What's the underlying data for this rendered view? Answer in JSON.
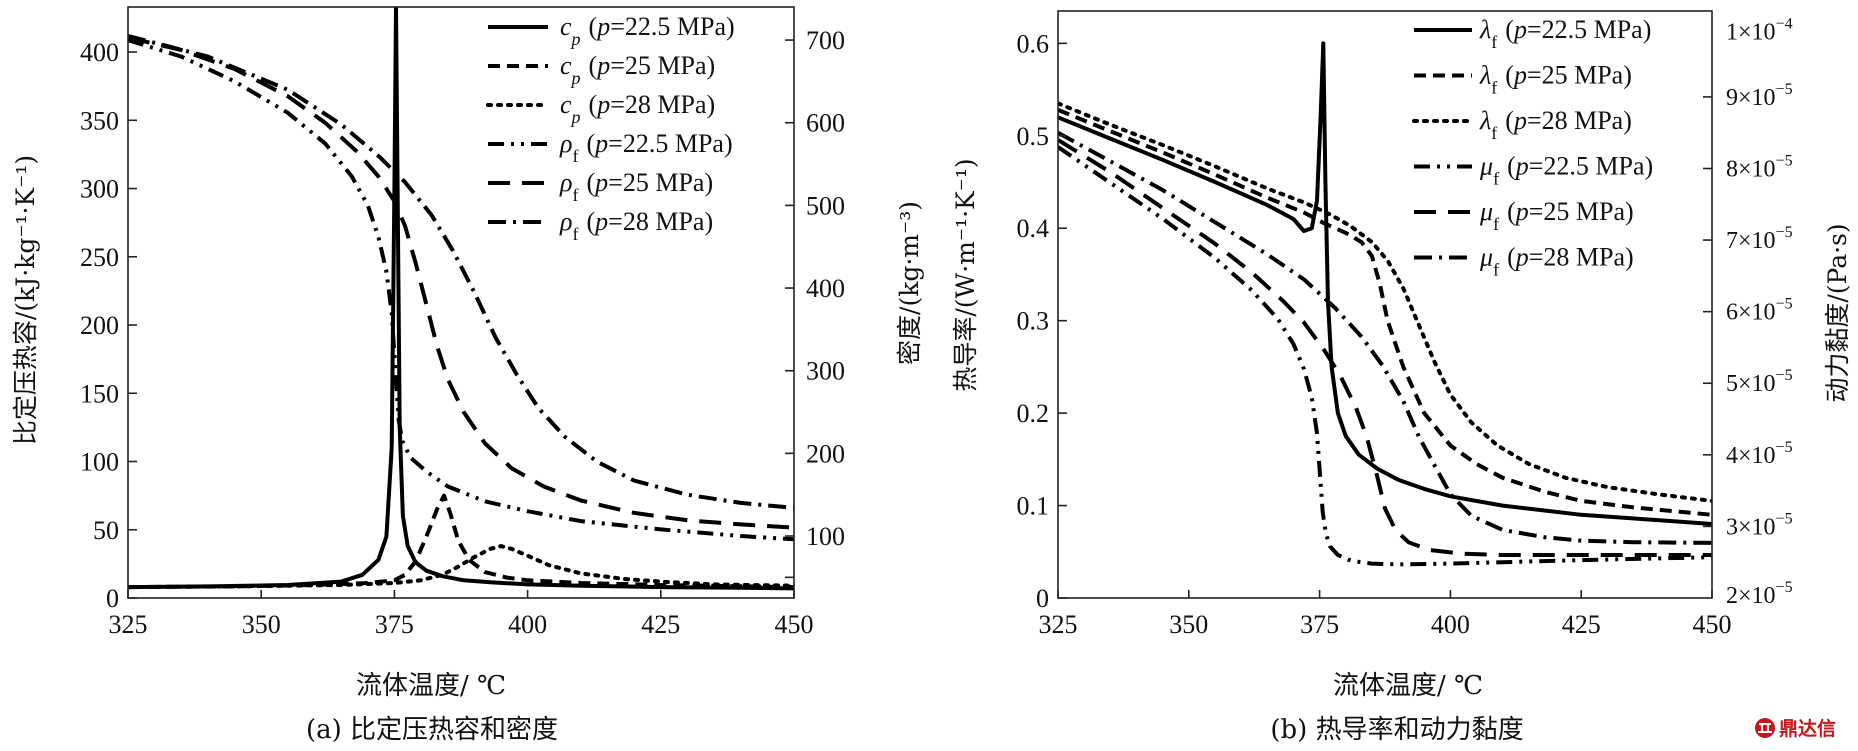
{
  "chart_data": [
    {
      "id": "a",
      "type": "line",
      "caption": "(a) 比定压热容和密度",
      "xlabel": "流体温度/ ℃",
      "ylabel": "比定压热容/(kJ·kg⁻¹·K⁻¹)",
      "y2label": "密度/(kg·m⁻³)",
      "xlim": [
        325,
        450
      ],
      "ylim": [
        0,
        433
      ],
      "y2lim": [
        25,
        740
      ],
      "xticks": [
        325,
        350,
        375,
        400,
        425,
        450
      ],
      "xtick_labels": [
        "325",
        "350",
        "375",
        "400",
        "425",
        "450"
      ],
      "yticks": [
        0,
        50,
        100,
        150,
        200,
        250,
        300,
        350,
        400
      ],
      "ytick_labels": [
        "0",
        "50",
        "100",
        "150",
        "200",
        "250",
        "300",
        "350",
        "400"
      ],
      "y2ticks": [
        100,
        200,
        300,
        400,
        500,
        600,
        700
      ],
      "y2tick_labels": [
        "100",
        "200",
        "300",
        "400",
        "500",
        "600",
        "700"
      ],
      "y2minor_ticks": [
        50
      ],
      "grid": false,
      "legend_position": "top-right",
      "series": [
        {
          "name": "cp (p=22.5 MPa)",
          "symbol": "c",
          "sub": "p",
          "label": "(p=22.5 MPa)",
          "p": "22.5",
          "axis": "left",
          "style": "solid",
          "x": [
            325,
            340,
            355,
            365,
            369,
            372,
            373.5,
            374.5,
            375,
            375.3,
            375.6,
            376,
            376.6,
            377.5,
            379,
            381,
            384,
            388,
            393,
            400,
            410,
            425,
            440,
            450
          ],
          "y": [
            8,
            8.5,
            9.5,
            12,
            17,
            28,
            45,
            110,
            300,
            433,
            300,
            125,
            60,
            38,
            26,
            20,
            16,
            13,
            11.5,
            10,
            9,
            8,
            7.5,
            7
          ]
        },
        {
          "name": "cp (p=25 MPa)",
          "symbol": "c",
          "sub": "p",
          "label": "(p=25 MPa)",
          "p": "25",
          "axis": "left",
          "style": "dashed",
          "x": [
            325,
            345,
            360,
            370,
            375,
            377,
            379,
            381,
            383,
            384.3,
            385.5,
            387,
            389,
            392,
            396,
            400,
            410,
            425,
            450
          ],
          "y": [
            8,
            8.5,
            9.5,
            11,
            13,
            17,
            27,
            45,
            65,
            75,
            62,
            42,
            28,
            19,
            15,
            13,
            11,
            9.5,
            8
          ]
        },
        {
          "name": "cp (p=28 MPa)",
          "symbol": "c",
          "sub": "p",
          "label": "(p=28 MPa)",
          "p": "28",
          "axis": "left",
          "style": "dotted",
          "x": [
            325,
            345,
            365,
            375,
            380,
            384,
            387,
            390,
            393,
            395,
            397,
            400,
            404,
            410,
            418,
            425,
            435,
            450
          ],
          "y": [
            8,
            8.5,
            9.5,
            11,
            13,
            17,
            23,
            30,
            36,
            38,
            36,
            31,
            24,
            18,
            14,
            12,
            10,
            9
          ]
        },
        {
          "name": "ρf (p=22.5 MPa)",
          "symbol": "ρ",
          "sub": "f",
          "label": "(p=22.5 MPa)",
          "p": "22.5",
          "axis": "right",
          "style": "dashdotdot",
          "x": [
            325,
            335,
            345,
            355,
            362,
            367,
            370,
            372,
            373.5,
            374.5,
            375.2,
            375.8,
            376.5,
            378,
            381,
            385,
            392,
            400,
            410,
            425,
            440,
            450
          ],
          "y": [
            700,
            680,
            650,
            612,
            575,
            535,
            500,
            462,
            420,
            370,
            300,
            240,
            215,
            195,
            178,
            160,
            142,
            130,
            118,
            108,
            100,
            96
          ]
        },
        {
          "name": "ρf (p=25 MPa)",
          "symbol": "ρ",
          "sub": "f",
          "label": "(p=25 MPa)",
          "p": "25",
          "axis": "right",
          "style": "longdash",
          "x": [
            325,
            335,
            345,
            355,
            362,
            368,
            372,
            375,
            377,
            379,
            381,
            383,
            385,
            388,
            392,
            397,
            403,
            410,
            420,
            430,
            440,
            450
          ],
          "y": [
            703,
            688,
            665,
            632,
            600,
            565,
            535,
            505,
            475,
            430,
            380,
            330,
            290,
            250,
            212,
            182,
            160,
            143,
            128,
            119,
            114,
            110
          ]
        },
        {
          "name": "ρf (p=28 MPa)",
          "symbol": "ρ",
          "sub": "f",
          "label": "(p=28 MPa)",
          "p": "28",
          "axis": "right",
          "style": "dashdot",
          "x": [
            325,
            340,
            355,
            365,
            372,
            377,
            382,
            386,
            390,
            394,
            398,
            402,
            407,
            413,
            420,
            430,
            440,
            450
          ],
          "y": [
            705,
            680,
            640,
            598,
            560,
            528,
            488,
            445,
            395,
            340,
            295,
            255,
            220,
            190,
            167,
            150,
            140,
            134
          ]
        }
      ]
    },
    {
      "id": "b",
      "type": "line",
      "caption": "(b) 热导率和动力黏度",
      "xlabel": "流体温度/ ℃",
      "ylabel": "热导率/(W·m⁻¹·K⁻¹)",
      "y2label": "动力黏度/(Pa·s)",
      "xlim": [
        325,
        450
      ],
      "ylim": [
        0,
        0.635
      ],
      "y2lim": [
        2e-05,
        0.000102
      ],
      "xticks": [
        325,
        350,
        375,
        400,
        425,
        450
      ],
      "xtick_labels": [
        "325",
        "350",
        "375",
        "400",
        "425",
        "450"
      ],
      "yticks": [
        0,
        0.1,
        0.2,
        0.3,
        0.4,
        0.5,
        0.6
      ],
      "ytick_labels": [
        "0",
        "0.1",
        "0.2",
        "0.3",
        "0.4",
        "0.5",
        "0.6"
      ],
      "y2ticks": [
        2e-05,
        3e-05,
        4e-05,
        5e-05,
        6e-05,
        7e-05,
        8e-05,
        9e-05,
        0.0001
      ],
      "y2tick_mantissa": [
        "2",
        "3",
        "4",
        "5",
        "6",
        "7",
        "8",
        "9",
        "1"
      ],
      "y2tick_exponent": [
        "−5",
        "−5",
        "−5",
        "−5",
        "−5",
        "−5",
        "−5",
        "−5",
        "−4"
      ],
      "y2tick_times": "×10",
      "grid": false,
      "legend_position": "top-right",
      "series": [
        {
          "name": "λf (p=22.5 MPa)",
          "symbol": "λ",
          "sub": "f",
          "label": "(p=22.5 MPa)",
          "p": "22.5",
          "axis": "left",
          "style": "solid",
          "x": [
            325,
            335,
            345,
            355,
            365,
            370,
            372,
            373.5,
            374.5,
            375.2,
            375.7,
            376.1,
            376.6,
            377.3,
            378.5,
            380,
            382.5,
            386,
            390,
            395,
            400,
            410,
            425,
            440,
            450
          ],
          "y": [
            0.52,
            0.497,
            0.474,
            0.45,
            0.425,
            0.41,
            0.397,
            0.4,
            0.43,
            0.52,
            0.6,
            0.45,
            0.32,
            0.25,
            0.2,
            0.175,
            0.155,
            0.14,
            0.128,
            0.118,
            0.11,
            0.1,
            0.09,
            0.084,
            0.08
          ]
        },
        {
          "name": "λf (p=25 MPa)",
          "symbol": "λ",
          "sub": "f",
          "label": "(p=25 MPa)",
          "p": "25",
          "axis": "left",
          "style": "dashed",
          "x": [
            325,
            335,
            345,
            355,
            365,
            372,
            376,
            380,
            383,
            385,
            386.5,
            388,
            391,
            395,
            400,
            405,
            410,
            418,
            425,
            435,
            450
          ],
          "y": [
            0.528,
            0.505,
            0.482,
            0.458,
            0.433,
            0.417,
            0.405,
            0.395,
            0.385,
            0.37,
            0.34,
            0.3,
            0.25,
            0.2,
            0.165,
            0.145,
            0.13,
            0.115,
            0.105,
            0.098,
            0.09
          ]
        },
        {
          "name": "λf (p=28 MPa)",
          "symbol": "λ",
          "sub": "f",
          "label": "(p=28 MPa)",
          "p": "28",
          "axis": "left",
          "style": "dotted",
          "x": [
            325,
            335,
            345,
            355,
            365,
            372,
            377,
            381,
            385,
            388,
            391,
            394,
            397,
            400,
            404,
            409,
            415,
            422,
            430,
            440,
            450
          ],
          "y": [
            0.535,
            0.512,
            0.49,
            0.467,
            0.443,
            0.428,
            0.415,
            0.402,
            0.385,
            0.365,
            0.335,
            0.295,
            0.255,
            0.22,
            0.19,
            0.165,
            0.145,
            0.13,
            0.12,
            0.112,
            0.105
          ]
        },
        {
          "name": "μf (p=22.5 MPa)",
          "symbol": "μ",
          "sub": "f",
          "label": "(p=22.5 MPa)",
          "p": "22.5",
          "axis": "right",
          "style": "dashdotdot",
          "x": [
            325,
            335,
            345,
            355,
            362,
            367,
            370,
            372,
            373.5,
            374.5,
            375.1,
            375.6,
            376.2,
            377,
            378.5,
            381,
            385,
            390,
            400,
            410,
            425,
            450
          ],
          "y": [
            8.3e-05,
            7.8e-05,
            7.3e-05,
            6.75e-05,
            6.3e-05,
            5.9e-05,
            5.55e-05,
            5.2e-05,
            4.8e-05,
            4.3e-05,
            3.7e-05,
            3.2e-05,
            2.9e-05,
            2.72e-05,
            2.6e-05,
            2.52e-05,
            2.48e-05,
            2.47e-05,
            2.48e-05,
            2.5e-05,
            2.53e-05,
            2.57e-05
          ]
        },
        {
          "name": "μf (p=25 MPa)",
          "symbol": "μ",
          "sub": "f",
          "label": "(p=25 MPa)",
          "p": "25",
          "axis": "right",
          "style": "longdash",
          "x": [
            325,
            335,
            345,
            355,
            362,
            368,
            372,
            376,
            379,
            382,
            384,
            386,
            387.5,
            389.5,
            392,
            396,
            402,
            410,
            425,
            440,
            450
          ],
          "y": [
            8.4e-05,
            7.95e-05,
            7.45e-05,
            6.95e-05,
            6.55e-05,
            6.15e-05,
            5.85e-05,
            5.45e-05,
            5.1e-05,
            4.65e-05,
            4.25e-05,
            3.7e-05,
            3.25e-05,
            2.95e-05,
            2.78e-05,
            2.67e-05,
            2.62e-05,
            2.6e-05,
            2.6e-05,
            2.6e-05,
            2.6e-05
          ]
        },
        {
          "name": "μf (p=28 MPa)",
          "symbol": "μ",
          "sub": "f",
          "label": "(p=28 MPa)",
          "p": "28",
          "axis": "right",
          "style": "dashdot",
          "x": [
            325,
            335,
            345,
            355,
            365,
            372,
            378,
            383,
            387,
            391,
            394,
            397,
            400,
            404,
            410,
            418,
            425,
            435,
            450
          ],
          "y": [
            8.5e-05,
            8.1e-05,
            7.7e-05,
            7.25e-05,
            6.8e-05,
            6.45e-05,
            6.05e-05,
            5.65e-05,
            5.25e-05,
            4.75e-05,
            4.25e-05,
            3.85e-05,
            3.45e-05,
            3.15e-05,
            2.95e-05,
            2.85e-05,
            2.8e-05,
            2.78e-05,
            2.77e-05
          ]
        }
      ]
    }
  ],
  "watermark": {
    "text": "鼎达信",
    "color": "#c8161d"
  }
}
